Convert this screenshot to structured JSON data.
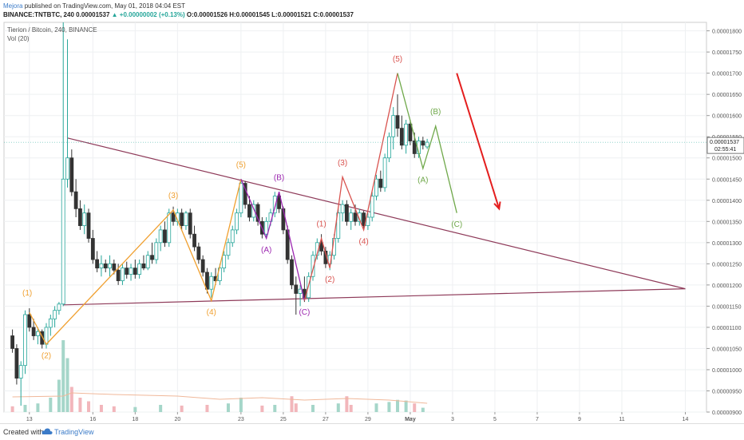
{
  "header": {
    "author": "Mejora",
    "published": "published on TradingView.com, May 01, 2018 04:04 EST",
    "symbol_line": "BINANCE:TNTBTC, 240",
    "last": "0.00001537",
    "change": "▲ +0.00000002 (+0.13%)",
    "ohlc": "O:0.00001526 H:0.00001545 L:0.00001521 C:0.00001537"
  },
  "pane": {
    "title": "Tierion / Bitcoin, 240, BINANCE",
    "volume_label": "Vol (20)"
  },
  "footer": {
    "created": "Created with",
    "brand": "TradingView"
  },
  "colors": {
    "up": "#26a69a",
    "down": "#333333",
    "triangle": "#8e3a59",
    "orange": "#f0a030",
    "purple": "#9c27b0",
    "red_wave": "#d9534f",
    "green_wave": "#6fa84a",
    "arrow": "#e41e1e",
    "vol_up": "#a5d6c9",
    "vol_down": "#f2b6bb",
    "ma": "#f0b89a"
  },
  "chart_data": {
    "type": "candlestick",
    "symbol": "TNTBTC",
    "interval": "240",
    "exchange": "BINANCE",
    "y_ticks": [
      "0.00001800",
      "0.00001750",
      "0.00001700",
      "0.00001650",
      "0.00001600",
      "0.00001550",
      "0.00001500",
      "0.00001450",
      "0.00001400",
      "0.00001350",
      "0.00001300",
      "0.00001250",
      "0.00001200",
      "0.00001150",
      "0.00001100",
      "0.00001050",
      "0.00001000",
      "0.00000950",
      "0.00000900"
    ],
    "y_range": [
      9e-06,
      1.82e-05
    ],
    "last_price_label": "0.00001537",
    "countdown_label": "02:55:41",
    "x_ticks": [
      "13",
      "16",
      "18",
      "20",
      "23",
      "25",
      "27",
      "29",
      "May",
      "3",
      "5",
      "7",
      "9",
      "11",
      "14"
    ],
    "candles": [
      {
        "d": 12.2,
        "o": 1.08,
        "h": 1.095,
        "l": 1.04,
        "c": 1.05
      },
      {
        "d": 12.4,
        "o": 1.05,
        "h": 1.06,
        "l": 0.965,
        "c": 0.98
      },
      {
        "d": 12.6,
        "o": 0.98,
        "h": 1.02,
        "l": 0.915,
        "c": 1.01
      },
      {
        "d": 12.8,
        "o": 1.01,
        "h": 1.14,
        "l": 0.99,
        "c": 1.13
      },
      {
        "d": 13.0,
        "o": 1.13,
        "h": 1.145,
        "l": 1.09,
        "c": 1.1
      },
      {
        "d": 13.2,
        "o": 1.1,
        "h": 1.12,
        "l": 1.07,
        "c": 1.08
      },
      {
        "d": 13.4,
        "o": 1.08,
        "h": 1.1,
        "l": 1.06,
        "c": 1.09
      },
      {
        "d": 13.6,
        "o": 1.09,
        "h": 1.095,
        "l": 1.05,
        "c": 1.06
      },
      {
        "d": 13.8,
        "o": 1.06,
        "h": 1.11,
        "l": 1.05,
        "c": 1.1
      },
      {
        "d": 14.0,
        "o": 1.1,
        "h": 1.13,
        "l": 1.08,
        "c": 1.12
      },
      {
        "d": 14.2,
        "o": 1.12,
        "h": 1.15,
        "l": 1.1,
        "c": 1.14
      },
      {
        "d": 14.4,
        "o": 1.14,
        "h": 1.16,
        "l": 1.13,
        "c": 1.155
      },
      {
        "d": 14.6,
        "o": 1.155,
        "h": 1.82,
        "l": 1.15,
        "c": 1.45
      },
      {
        "d": 14.8,
        "o": 1.45,
        "h": 1.78,
        "l": 1.43,
        "c": 1.5
      },
      {
        "d": 15.0,
        "o": 1.5,
        "h": 1.52,
        "l": 1.41,
        "c": 1.42
      },
      {
        "d": 15.2,
        "o": 1.42,
        "h": 1.45,
        "l": 1.36,
        "c": 1.38
      },
      {
        "d": 15.4,
        "o": 1.38,
        "h": 1.4,
        "l": 1.33,
        "c": 1.34
      },
      {
        "d": 15.6,
        "o": 1.34,
        "h": 1.39,
        "l": 1.32,
        "c": 1.37
      },
      {
        "d": 15.8,
        "o": 1.37,
        "h": 1.38,
        "l": 1.3,
        "c": 1.31
      },
      {
        "d": 16.0,
        "o": 1.31,
        "h": 1.33,
        "l": 1.25,
        "c": 1.26
      },
      {
        "d": 16.2,
        "o": 1.26,
        "h": 1.28,
        "l": 1.23,
        "c": 1.24
      },
      {
        "d": 16.4,
        "o": 1.24,
        "h": 1.27,
        "l": 1.22,
        "c": 1.25
      },
      {
        "d": 16.6,
        "o": 1.25,
        "h": 1.26,
        "l": 1.23,
        "c": 1.24
      },
      {
        "d": 16.8,
        "o": 1.24,
        "h": 1.27,
        "l": 1.22,
        "c": 1.25
      },
      {
        "d": 17.0,
        "o": 1.25,
        "h": 1.26,
        "l": 1.225,
        "c": 1.235
      },
      {
        "d": 17.2,
        "o": 1.235,
        "h": 1.25,
        "l": 1.2,
        "c": 1.21
      },
      {
        "d": 17.4,
        "o": 1.21,
        "h": 1.25,
        "l": 1.2,
        "c": 1.24
      },
      {
        "d": 17.6,
        "o": 1.24,
        "h": 1.255,
        "l": 1.215,
        "c": 1.225
      },
      {
        "d": 17.8,
        "o": 1.225,
        "h": 1.25,
        "l": 1.21,
        "c": 1.24
      },
      {
        "d": 18.0,
        "o": 1.24,
        "h": 1.26,
        "l": 1.215,
        "c": 1.225
      },
      {
        "d": 18.2,
        "o": 1.225,
        "h": 1.26,
        "l": 1.215,
        "c": 1.25
      },
      {
        "d": 18.4,
        "o": 1.25,
        "h": 1.27,
        "l": 1.235,
        "c": 1.24
      },
      {
        "d": 18.6,
        "o": 1.24,
        "h": 1.28,
        "l": 1.235,
        "c": 1.27
      },
      {
        "d": 18.8,
        "o": 1.27,
        "h": 1.3,
        "l": 1.25,
        "c": 1.26
      },
      {
        "d": 19.0,
        "o": 1.26,
        "h": 1.31,
        "l": 1.25,
        "c": 1.3
      },
      {
        "d": 19.2,
        "o": 1.3,
        "h": 1.34,
        "l": 1.28,
        "c": 1.33
      },
      {
        "d": 19.4,
        "o": 1.33,
        "h": 1.35,
        "l": 1.29,
        "c": 1.3
      },
      {
        "d": 19.6,
        "o": 1.3,
        "h": 1.38,
        "l": 1.29,
        "c": 1.37
      },
      {
        "d": 19.8,
        "o": 1.37,
        "h": 1.385,
        "l": 1.34,
        "c": 1.35
      },
      {
        "d": 20.0,
        "o": 1.35,
        "h": 1.38,
        "l": 1.34,
        "c": 1.37
      },
      {
        "d": 20.2,
        "o": 1.37,
        "h": 1.38,
        "l": 1.33,
        "c": 1.34
      },
      {
        "d": 20.4,
        "o": 1.34,
        "h": 1.375,
        "l": 1.33,
        "c": 1.37
      },
      {
        "d": 20.6,
        "o": 1.37,
        "h": 1.38,
        "l": 1.31,
        "c": 1.32
      },
      {
        "d": 20.8,
        "o": 1.32,
        "h": 1.34,
        "l": 1.28,
        "c": 1.29
      },
      {
        "d": 21.0,
        "o": 1.29,
        "h": 1.3,
        "l": 1.25,
        "c": 1.26
      },
      {
        "d": 21.2,
        "o": 1.26,
        "h": 1.27,
        "l": 1.22,
        "c": 1.23
      },
      {
        "d": 21.4,
        "o": 1.23,
        "h": 1.24,
        "l": 1.18,
        "c": 1.19
      },
      {
        "d": 21.6,
        "o": 1.19,
        "h": 1.23,
        "l": 1.17,
        "c": 1.22
      },
      {
        "d": 21.8,
        "o": 1.22,
        "h": 1.24,
        "l": 1.2,
        "c": 1.21
      },
      {
        "d": 22.0,
        "o": 1.21,
        "h": 1.25,
        "l": 1.2,
        "c": 1.24
      },
      {
        "d": 22.2,
        "o": 1.24,
        "h": 1.28,
        "l": 1.23,
        "c": 1.27
      },
      {
        "d": 22.4,
        "o": 1.27,
        "h": 1.31,
        "l": 1.26,
        "c": 1.3
      },
      {
        "d": 22.6,
        "o": 1.3,
        "h": 1.34,
        "l": 1.29,
        "c": 1.33
      },
      {
        "d": 22.8,
        "o": 1.33,
        "h": 1.38,
        "l": 1.32,
        "c": 1.37
      },
      {
        "d": 23.0,
        "o": 1.37,
        "h": 1.45,
        "l": 1.36,
        "c": 1.44
      },
      {
        "d": 23.2,
        "o": 1.44,
        "h": 1.445,
        "l": 1.38,
        "c": 1.39
      },
      {
        "d": 23.4,
        "o": 1.39,
        "h": 1.41,
        "l": 1.35,
        "c": 1.36
      },
      {
        "d": 23.6,
        "o": 1.36,
        "h": 1.4,
        "l": 1.35,
        "c": 1.39
      },
      {
        "d": 23.8,
        "o": 1.39,
        "h": 1.395,
        "l": 1.34,
        "c": 1.35
      },
      {
        "d": 24.0,
        "o": 1.35,
        "h": 1.36,
        "l": 1.31,
        "c": 1.32
      },
      {
        "d": 24.2,
        "o": 1.32,
        "h": 1.36,
        "l": 1.31,
        "c": 1.35
      },
      {
        "d": 24.4,
        "o": 1.35,
        "h": 1.38,
        "l": 1.34,
        "c": 1.37
      },
      {
        "d": 24.6,
        "o": 1.37,
        "h": 1.42,
        "l": 1.36,
        "c": 1.41
      },
      {
        "d": 24.8,
        "o": 1.41,
        "h": 1.42,
        "l": 1.37,
        "c": 1.38
      },
      {
        "d": 25.0,
        "o": 1.38,
        "h": 1.385,
        "l": 1.32,
        "c": 1.33
      },
      {
        "d": 25.2,
        "o": 1.33,
        "h": 1.34,
        "l": 1.25,
        "c": 1.26
      },
      {
        "d": 25.4,
        "o": 1.26,
        "h": 1.27,
        "l": 1.19,
        "c": 1.2
      },
      {
        "d": 25.6,
        "o": 1.2,
        "h": 1.22,
        "l": 1.13,
        "c": 1.18
      },
      {
        "d": 25.8,
        "o": 1.18,
        "h": 1.2,
        "l": 1.15,
        "c": 1.19
      },
      {
        "d": 26.0,
        "o": 1.19,
        "h": 1.22,
        "l": 1.16,
        "c": 1.17
      },
      {
        "d": 26.2,
        "o": 1.17,
        "h": 1.23,
        "l": 1.16,
        "c": 1.22
      },
      {
        "d": 26.4,
        "o": 1.22,
        "h": 1.28,
        "l": 1.21,
        "c": 1.27
      },
      {
        "d": 26.6,
        "o": 1.27,
        "h": 1.31,
        "l": 1.26,
        "c": 1.3
      },
      {
        "d": 26.8,
        "o": 1.3,
        "h": 1.32,
        "l": 1.27,
        "c": 1.28
      },
      {
        "d": 27.0,
        "o": 1.28,
        "h": 1.29,
        "l": 1.24,
        "c": 1.25
      },
      {
        "d": 27.2,
        "o": 1.25,
        "h": 1.28,
        "l": 1.235,
        "c": 1.27
      },
      {
        "d": 27.4,
        "o": 1.27,
        "h": 1.32,
        "l": 1.26,
        "c": 1.31
      },
      {
        "d": 27.6,
        "o": 1.31,
        "h": 1.38,
        "l": 1.3,
        "c": 1.37
      },
      {
        "d": 27.8,
        "o": 1.37,
        "h": 1.4,
        "l": 1.35,
        "c": 1.39
      },
      {
        "d": 28.0,
        "o": 1.39,
        "h": 1.4,
        "l": 1.34,
        "c": 1.35
      },
      {
        "d": 28.2,
        "o": 1.35,
        "h": 1.38,
        "l": 1.33,
        "c": 1.37
      },
      {
        "d": 28.4,
        "o": 1.37,
        "h": 1.39,
        "l": 1.34,
        "c": 1.35
      },
      {
        "d": 28.6,
        "o": 1.35,
        "h": 1.38,
        "l": 1.34,
        "c": 1.37
      },
      {
        "d": 28.8,
        "o": 1.37,
        "h": 1.375,
        "l": 1.33,
        "c": 1.34
      },
      {
        "d": 29.0,
        "o": 1.34,
        "h": 1.37,
        "l": 1.33,
        "c": 1.36
      },
      {
        "d": 29.2,
        "o": 1.36,
        "h": 1.42,
        "l": 1.35,
        "c": 1.41
      },
      {
        "d": 29.4,
        "o": 1.41,
        "h": 1.46,
        "l": 1.4,
        "c": 1.45
      },
      {
        "d": 29.6,
        "o": 1.45,
        "h": 1.47,
        "l": 1.42,
        "c": 1.43
      },
      {
        "d": 29.8,
        "o": 1.43,
        "h": 1.51,
        "l": 1.42,
        "c": 1.5
      },
      {
        "d": 30.0,
        "o": 1.5,
        "h": 1.56,
        "l": 1.49,
        "c": 1.55
      },
      {
        "d": 30.2,
        "o": 1.55,
        "h": 1.62,
        "l": 1.52,
        "c": 1.6
      },
      {
        "d": 30.4,
        "o": 1.6,
        "h": 1.65,
        "l": 1.55,
        "c": 1.57
      },
      {
        "d": 30.6,
        "o": 1.57,
        "h": 1.6,
        "l": 1.52,
        "c": 1.53
      },
      {
        "d": 30.8,
        "o": 1.53,
        "h": 1.59,
        "l": 1.51,
        "c": 1.58
      },
      {
        "d": 31.0,
        "o": 1.58,
        "h": 1.59,
        "l": 1.53,
        "c": 1.54
      },
      {
        "d": 31.2,
        "o": 1.54,
        "h": 1.56,
        "l": 1.5,
        "c": 1.51
      },
      {
        "d": 31.4,
        "o": 1.51,
        "h": 1.55,
        "l": 1.5,
        "c": 1.54
      },
      {
        "d": 31.6,
        "o": 1.54,
        "h": 1.55,
        "l": 1.52,
        "c": 1.53
      },
      {
        "d": 31.8,
        "o": 1.526,
        "h": 1.545,
        "l": 1.521,
        "c": 1.537
      }
    ],
    "volume": [
      {
        "d": 12.2,
        "v": 0.08,
        "u": 0
      },
      {
        "d": 12.8,
        "v": 0.1,
        "u": 1
      },
      {
        "d": 13.4,
        "v": 0.12,
        "u": 1
      },
      {
        "d": 14.0,
        "v": 0.2,
        "u": 1
      },
      {
        "d": 14.4,
        "v": 0.45,
        "u": 1
      },
      {
        "d": 14.6,
        "v": 1.0,
        "u": 1
      },
      {
        "d": 14.8,
        "v": 0.75,
        "u": 1
      },
      {
        "d": 15.0,
        "v": 0.35,
        "u": 0
      },
      {
        "d": 15.4,
        "v": 0.2,
        "u": 0
      },
      {
        "d": 15.8,
        "v": 0.15,
        "u": 0
      },
      {
        "d": 16.4,
        "v": 0.1,
        "u": 0
      },
      {
        "d": 17.0,
        "v": 0.08,
        "u": 0
      },
      {
        "d": 18.0,
        "v": 0.07,
        "u": 1
      },
      {
        "d": 19.2,
        "v": 0.1,
        "u": 1
      },
      {
        "d": 20.2,
        "v": 0.09,
        "u": 0
      },
      {
        "d": 21.4,
        "v": 0.1,
        "u": 0
      },
      {
        "d": 22.4,
        "v": 0.12,
        "u": 1
      },
      {
        "d": 23.0,
        "v": 0.2,
        "u": 1
      },
      {
        "d": 24.0,
        "v": 0.09,
        "u": 0
      },
      {
        "d": 24.6,
        "v": 0.1,
        "u": 1
      },
      {
        "d": 25.4,
        "v": 0.22,
        "u": 0
      },
      {
        "d": 25.6,
        "v": 0.12,
        "u": 0
      },
      {
        "d": 26.4,
        "v": 0.1,
        "u": 1
      },
      {
        "d": 27.6,
        "v": 0.12,
        "u": 1
      },
      {
        "d": 28.0,
        "v": 0.22,
        "u": 0
      },
      {
        "d": 28.2,
        "v": 0.1,
        "u": 0
      },
      {
        "d": 29.4,
        "v": 0.12,
        "u": 1
      },
      {
        "d": 30.0,
        "v": 0.14,
        "u": 1
      },
      {
        "d": 30.4,
        "v": 0.17,
        "u": 1
      },
      {
        "d": 30.8,
        "v": 0.16,
        "u": 1
      },
      {
        "d": 31.2,
        "v": 0.12,
        "u": 0
      },
      {
        "d": 31.6,
        "v": 0.06,
        "u": 1
      }
    ],
    "triangle": {
      "upper": [
        [
          14.8,
          1.547
        ],
        [
          44.0,
          1.191
        ]
      ],
      "lower": [
        [
          14.6,
          1.153
        ],
        [
          44.0,
          1.191
        ]
      ]
    },
    "waves": [
      {
        "name": "primary",
        "color": "orange",
        "points": [
          [
            13.0,
            1.135
          ],
          [
            13.8,
            1.06
          ],
          [
            19.8,
            1.377
          ],
          [
            21.6,
            1.163
          ],
          [
            23.0,
            1.45
          ]
        ],
        "labels": [
          "(1)",
          "(2)",
          "(3)",
          "(4)",
          "(5)"
        ]
      },
      {
        "name": "correction",
        "color": "purple",
        "points": [
          [
            23.0,
            1.45
          ],
          [
            24.2,
            1.31
          ],
          [
            24.8,
            1.42
          ],
          [
            26.0,
            1.163
          ]
        ],
        "labels": [
          "(A)",
          "(B)",
          "(C)"
        ]
      },
      {
        "name": "impulse",
        "color": "red_wave",
        "points": [
          [
            26.0,
            1.163
          ],
          [
            26.8,
            1.31
          ],
          [
            27.2,
            1.24
          ],
          [
            27.8,
            1.455
          ],
          [
            28.8,
            1.33
          ],
          [
            30.4,
            1.7
          ]
        ],
        "labels": [
          "(1)",
          "(2)",
          "(3)",
          "(4)",
          "(5)"
        ]
      },
      {
        "name": "projection",
        "color": "green_wave",
        "points": [
          [
            30.4,
            1.7
          ],
          [
            31.6,
            1.475
          ],
          [
            32.2,
            1.575
          ],
          [
            33.2,
            1.37
          ]
        ],
        "labels": [
          "(A)",
          "(B)",
          "(C)"
        ]
      }
    ],
    "arrow": {
      "from": [
        33.2,
        1.7
      ],
      "to": [
        35.2,
        1.38
      ]
    },
    "annotations": [
      {
        "text": "(1)",
        "d": 12.9,
        "y": 1.175,
        "color": "orange"
      },
      {
        "text": "(2)",
        "d": 13.8,
        "y": 1.027,
        "color": "orange"
      },
      {
        "text": "(3)",
        "d": 19.8,
        "y": 1.405,
        "color": "orange"
      },
      {
        "text": "(4)",
        "d": 21.6,
        "y": 1.13,
        "color": "orange"
      },
      {
        "text": "(5)",
        "d": 23.0,
        "y": 1.478,
        "color": "orange"
      },
      {
        "text": "(B)",
        "d": 24.8,
        "y": 1.448,
        "color": "purple"
      },
      {
        "text": "(A)",
        "d": 24.2,
        "y": 1.277,
        "color": "purple"
      },
      {
        "text": "(C)",
        "d": 26.0,
        "y": 1.13,
        "color": "purple"
      },
      {
        "text": "(1)",
        "d": 26.8,
        "y": 1.338,
        "color": "red_wave"
      },
      {
        "text": "(2)",
        "d": 27.2,
        "y": 1.207,
        "color": "red_wave"
      },
      {
        "text": "(3)",
        "d": 27.8,
        "y": 1.483,
        "color": "red_wave"
      },
      {
        "text": "(4)",
        "d": 28.8,
        "y": 1.297,
        "color": "red_wave"
      },
      {
        "text": "(5)",
        "d": 30.4,
        "y": 1.728,
        "color": "red_wave"
      },
      {
        "text": "(A)",
        "d": 31.6,
        "y": 1.442,
        "color": "green_wave"
      },
      {
        "text": "(B)",
        "d": 32.2,
        "y": 1.603,
        "color": "green_wave"
      },
      {
        "text": "(C)",
        "d": 33.2,
        "y": 1.337,
        "color": "green_wave"
      }
    ]
  }
}
